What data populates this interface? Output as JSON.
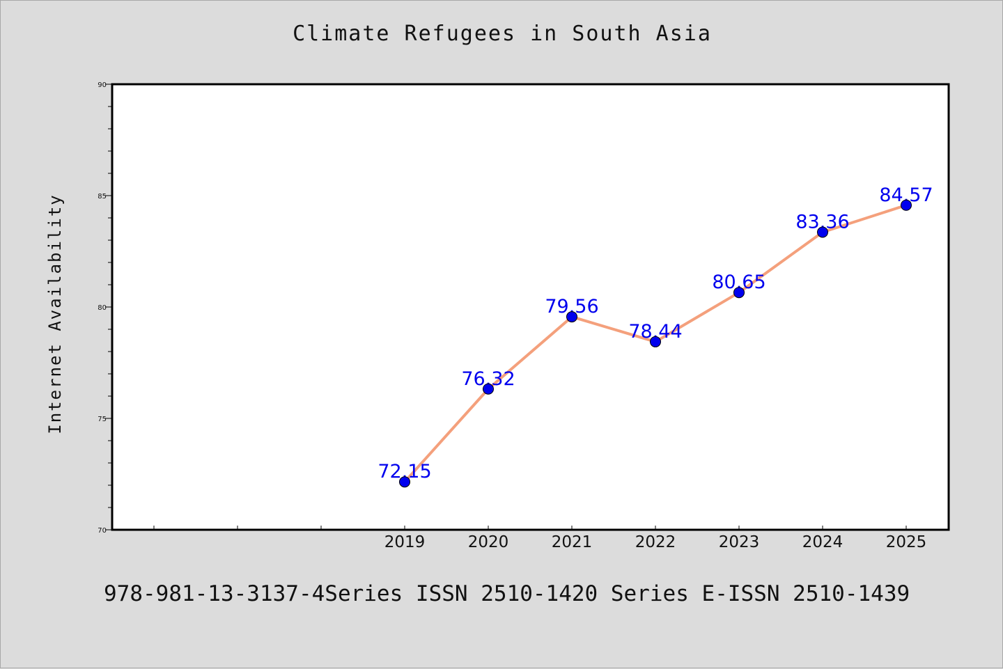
{
  "chart_data": {
    "type": "line",
    "title": "Climate Refugees in South Asia",
    "xlabel": "",
    "ylabel": "Internet Availability",
    "categories": [
      "2019",
      "2020",
      "2021",
      "2022",
      "2023",
      "2024",
      "2025"
    ],
    "values": [
      72.15,
      76.32,
      79.56,
      78.44,
      80.65,
      83.36,
      84.57
    ],
    "value_labels": [
      "72.15",
      "76.32",
      "79.56",
      "78.44",
      "80.65",
      "83.36",
      "84.57"
    ],
    "ylim": [
      70,
      90
    ],
    "yticks": [
      "70",
      "75",
      "80",
      "85",
      "90"
    ],
    "grid": false,
    "line_color": "#f4a07c",
    "marker_color": "#0000ee",
    "label_color": "#0000ee"
  },
  "footer": {
    "text": "978-981-13-3137-4Series ISSN 2510-1420 Series E-ISSN 2510-1439"
  }
}
